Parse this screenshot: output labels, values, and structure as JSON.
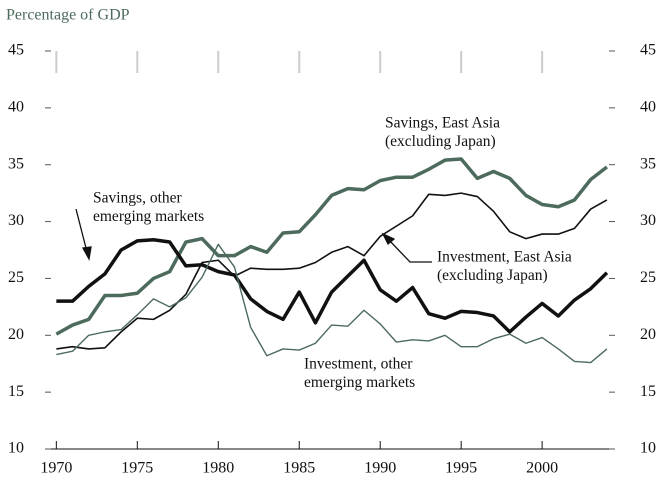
{
  "chart_data": {
    "type": "line",
    "ylabel": "Percentage of GDP",
    "x": [
      1970,
      1971,
      1972,
      1973,
      1974,
      1975,
      1976,
      1977,
      1978,
      1979,
      1980,
      1981,
      1982,
      1983,
      1984,
      1985,
      1986,
      1987,
      1988,
      1989,
      1990,
      1991,
      1992,
      1993,
      1994,
      1995,
      1996,
      1997,
      1998,
      1999,
      2000,
      2001,
      2002,
      2003,
      2004
    ],
    "xlim": [
      1969.3,
      2004.5
    ],
    "xticks": [
      1970,
      1975,
      1980,
      1985,
      1990,
      1995,
      2000
    ],
    "ylim": [
      10,
      45
    ],
    "yticks": [
      10,
      15,
      20,
      25,
      30,
      35,
      40,
      45
    ],
    "y2lim": [
      10,
      45
    ],
    "y2ticks": [
      10,
      15,
      20,
      25,
      30,
      35,
      40,
      45
    ],
    "series": [
      {
        "color": "#4d6b5c",
        "width": 3.5,
        "values": [
          20.1,
          20.9,
          21.4,
          23.5,
          23.5,
          23.7,
          25.0,
          25.6,
          28.2,
          28.5,
          27.0,
          27.0,
          27.8,
          27.3,
          29.0,
          29.1,
          30.6,
          32.3,
          32.9,
          32.8,
          33.6,
          33.9,
          33.9,
          34.6,
          35.4,
          35.5,
          33.8,
          34.4,
          33.8,
          32.3,
          31.5,
          31.3,
          31.9,
          33.7,
          34.8
        ]
      },
      {
        "color": "#111111",
        "width": 1.6,
        "values": [
          18.8,
          19.0,
          18.8,
          18.9,
          20.3,
          21.5,
          21.4,
          22.2,
          23.6,
          26.4,
          26.6,
          25.2,
          25.9,
          25.8,
          25.8,
          25.9,
          26.4,
          27.3,
          27.8,
          27.0,
          28.7,
          29.6,
          30.5,
          32.4,
          32.3,
          32.5,
          32.2,
          30.9,
          29.1,
          28.5,
          28.9,
          28.9,
          29.4,
          31.1,
          31.9
        ]
      },
      {
        "color": "#111111",
        "width": 3.5,
        "values": [
          23.0,
          23.0,
          24.3,
          25.4,
          27.5,
          28.3,
          28.4,
          28.2,
          26.1,
          26.2,
          25.6,
          25.3,
          23.2,
          22.1,
          21.4,
          23.8,
          21.1,
          23.8,
          25.2,
          26.6,
          24.0,
          23.0,
          24.2,
          21.9,
          21.5,
          22.1,
          22.0,
          21.7,
          20.3,
          21.6,
          22.8,
          21.7,
          23.1,
          24.1,
          25.5
        ]
      },
      {
        "color": "#4d6b5c",
        "width": 1.4,
        "values": [
          18.3,
          18.6,
          20.0,
          20.3,
          20.5,
          21.8,
          23.2,
          22.5,
          23.3,
          25.1,
          28.0,
          26.0,
          20.7,
          18.2,
          18.8,
          18.7,
          19.3,
          20.9,
          20.8,
          22.2,
          21.0,
          19.4,
          19.6,
          19.5,
          20.0,
          19.0,
          19.0,
          19.7,
          20.1,
          19.3,
          19.8,
          18.8,
          17.7,
          17.6,
          18.8
        ]
      }
    ],
    "annotations": [
      {
        "lines": [
          "Savings, East Asia",
          "(excluding Japan)"
        ]
      },
      {
        "lines": [
          "Savings, other",
          "emerging markets"
        ]
      },
      {
        "lines": [
          "Investment, East Asia",
          "(excluding Japan)"
        ]
      },
      {
        "lines": [
          "Investment, other",
          "emerging markets"
        ]
      }
    ]
  }
}
